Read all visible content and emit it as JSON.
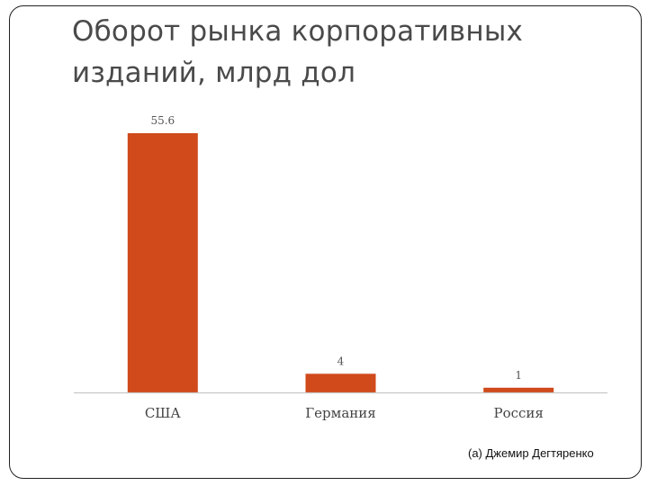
{
  "title_line1": "Оборот рынка корпоративных",
  "title_line2": "изданий, млрд дол",
  "footer": "(a) Джемир Дегтяренко",
  "colors": {
    "bar": "#d04a1b",
    "axis": "#c8c8c8"
  },
  "chart_data": {
    "type": "bar",
    "title": "Оборот рынка корпоративных изданий, млрд дол",
    "categories": [
      "США",
      "Германия",
      "Россия"
    ],
    "values": [
      55.6,
      4,
      1
    ],
    "value_labels": [
      "55.6",
      "4",
      "1"
    ],
    "xlabel": "",
    "ylabel": "",
    "ylim": [
      0,
      55.6
    ],
    "grid": false,
    "legend": "none"
  }
}
